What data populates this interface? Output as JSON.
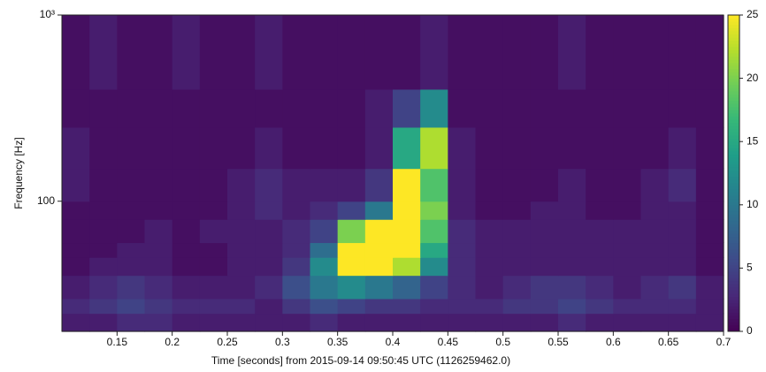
{
  "chart_data": {
    "type": "heatmap",
    "xlabel": "Time [seconds] from 2015-09-14 09:50:45 UTC (1126259462.0)",
    "ylabel": "Frequency [Hz]",
    "xlim": [
      0.1,
      0.7
    ],
    "ylim": [
      20,
      1000
    ],
    "yscale": "log",
    "xticks": [
      0.15,
      0.2,
      0.25,
      0.3,
      0.35,
      0.4,
      0.45,
      0.5,
      0.55,
      0.6,
      0.65,
      0.7
    ],
    "yticks": [
      100,
      {
        "value": 1000,
        "label": "10³"
      }
    ],
    "colormap": "viridis",
    "clim": [
      0,
      25
    ],
    "cticks": [
      0,
      5,
      10,
      15,
      20,
      25
    ],
    "x_edges": [
      0.1,
      0.125,
      0.15,
      0.175,
      0.2,
      0.225,
      0.25,
      0.275,
      0.3,
      0.325,
      0.35,
      0.375,
      0.4,
      0.425,
      0.45,
      0.475,
      0.5,
      0.525,
      0.55,
      0.575,
      0.6,
      0.625,
      0.65,
      0.675,
      0.7
    ],
    "y_edges": [
      20,
      25,
      30,
      40,
      50,
      60,
      80,
      100,
      150,
      250,
      400,
      1000
    ],
    "z": [
      [
        2,
        2,
        3,
        3,
        2,
        2,
        2,
        2,
        2,
        3,
        2,
        2,
        2,
        2,
        2,
        2,
        2,
        2,
        3,
        2,
        2,
        2,
        2,
        2
      ],
      [
        3,
        4,
        5,
        4,
        3,
        3,
        3,
        2,
        4,
        6,
        5,
        4,
        4,
        3,
        3,
        3,
        4,
        4,
        5,
        4,
        3,
        3,
        3,
        2
      ],
      [
        2,
        3,
        4,
        3,
        2,
        2,
        2,
        3,
        6,
        10,
        12,
        10,
        8,
        5,
        3,
        2,
        3,
        4,
        4,
        3,
        2,
        3,
        4,
        2
      ],
      [
        1,
        2,
        2,
        2,
        1,
        1,
        2,
        2,
        4,
        12,
        25,
        25,
        22,
        12,
        3,
        2,
        2,
        2,
        2,
        2,
        2,
        2,
        2,
        1
      ],
      [
        1,
        1,
        2,
        2,
        1,
        1,
        2,
        2,
        3,
        9,
        25,
        25,
        25,
        15,
        3,
        2,
        2,
        2,
        2,
        2,
        2,
        2,
        2,
        1
      ],
      [
        1,
        1,
        1,
        2,
        1,
        2,
        2,
        2,
        3,
        5,
        20,
        25,
        25,
        18,
        3,
        2,
        2,
        2,
        2,
        2,
        2,
        2,
        2,
        1
      ],
      [
        1,
        1,
        1,
        1,
        1,
        1,
        2,
        3,
        2,
        3,
        5,
        10,
        25,
        20,
        2,
        1,
        1,
        2,
        2,
        1,
        1,
        2,
        2,
        1
      ],
      [
        2,
        1,
        1,
        1,
        1,
        1,
        2,
        3,
        2,
        2,
        2,
        4,
        25,
        18,
        2,
        1,
        1,
        1,
        2,
        1,
        1,
        2,
        3,
        1
      ],
      [
        2,
        1,
        1,
        1,
        1,
        1,
        1,
        2,
        1,
        1,
        1,
        2,
        15,
        22,
        2,
        1,
        1,
        1,
        1,
        1,
        1,
        1,
        2,
        1
      ],
      [
        1,
        1,
        1,
        1,
        1,
        1,
        1,
        1,
        1,
        1,
        1,
        2,
        5,
        12,
        1,
        1,
        1,
        1,
        1,
        1,
        1,
        1,
        1,
        1
      ],
      [
        1,
        2,
        1,
        1,
        2,
        1,
        1,
        2,
        1,
        1,
        1,
        1,
        1,
        2,
        1,
        1,
        1,
        1,
        2,
        1,
        1,
        1,
        1,
        1
      ]
    ]
  }
}
